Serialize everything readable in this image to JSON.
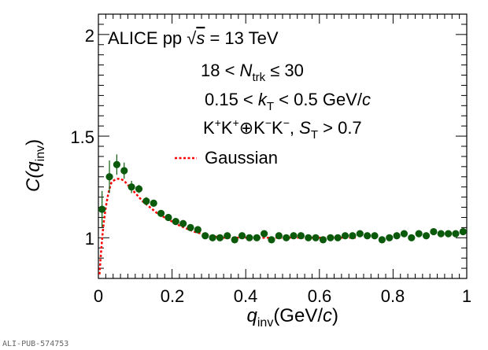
{
  "chart_data": {
    "type": "scatter",
    "xlim": [
      0,
      1
    ],
    "ylim": [
      0.8,
      2.1
    ],
    "x_ticks": [
      "0",
      "0.2",
      "0.4",
      "0.6",
      "0.8",
      "1"
    ],
    "y_ticks": [
      "1",
      "1.5",
      "2"
    ],
    "xlabel": "q_inv (GeV/c)",
    "ylabel": "C(q_inv)",
    "annotations": [
      "ALICE  pp  √s = 13 TeV",
      "18 < N_trk ≤ 30",
      "0.15 < k_T < 0.5 GeV/c",
      "K⁺K⁺⊕K⁻K⁻, S_T > 0.7"
    ],
    "legend_label": "Gaussian",
    "legend_position": "center-left",
    "colors": {
      "data": "#0b5a0b",
      "fit": "#ff0000"
    },
    "series": [
      {
        "kind": "points",
        "x": [
          0.01,
          0.03,
          0.05,
          0.07,
          0.09,
          0.11,
          0.13,
          0.15,
          0.17,
          0.19,
          0.21,
          0.23,
          0.25,
          0.27,
          0.29,
          0.31,
          0.33,
          0.35,
          0.37,
          0.39,
          0.41,
          0.43,
          0.45,
          0.47,
          0.49,
          0.51,
          0.53,
          0.55,
          0.57,
          0.59,
          0.61,
          0.63,
          0.65,
          0.67,
          0.69,
          0.71,
          0.73,
          0.75,
          0.77,
          0.79,
          0.81,
          0.83,
          0.85,
          0.87,
          0.89,
          0.91,
          0.93,
          0.95,
          0.97,
          0.99
        ],
        "y": [
          1.14,
          1.3,
          1.36,
          1.33,
          1.25,
          1.24,
          1.18,
          1.17,
          1.12,
          1.1,
          1.08,
          1.07,
          1.05,
          1.04,
          1.01,
          1.0,
          1.0,
          1.01,
          0.99,
          1.01,
          1.0,
          1.0,
          1.02,
          0.99,
          1.01,
          1.0,
          1.01,
          1.01,
          1.0,
          1.0,
          0.99,
          1.0,
          1.0,
          1.01,
          1.01,
          1.02,
          1.01,
          1.01,
          0.99,
          1.0,
          1.01,
          1.02,
          1.0,
          1.02,
          1.01,
          1.03,
          1.02,
          1.02,
          1.02,
          1.03
        ],
        "err": [
          0.09,
          0.08,
          0.05,
          0.04,
          0.03,
          0.02,
          0.02,
          0.015,
          0.01,
          0.01,
          0.01,
          0.01,
          0.01,
          0.01,
          0.01,
          0.01,
          0.01,
          0.01,
          0.01,
          0.01,
          0.01,
          0.01,
          0.01,
          0.01,
          0.01,
          0.01,
          0.01,
          0.01,
          0.01,
          0.01,
          0.01,
          0.01,
          0.01,
          0.01,
          0.01,
          0.01,
          0.01,
          0.01,
          0.01,
          0.01,
          0.01,
          0.01,
          0.01,
          0.01,
          0.01,
          0.01,
          0.01,
          0.01,
          0.01,
          0.01
        ]
      },
      {
        "kind": "fit",
        "name": "Gaussian",
        "x": [
          0.003,
          0.006,
          0.009,
          0.012,
          0.015,
          0.02,
          0.025,
          0.03,
          0.035,
          0.04,
          0.05,
          0.06,
          0.07,
          0.08,
          0.09,
          0.1,
          0.12,
          0.14,
          0.16,
          0.18,
          0.2,
          0.22,
          0.24,
          0.26,
          0.28,
          0.3,
          0.32,
          0.34,
          0.36,
          0.38,
          0.4,
          0.45,
          0.5,
          0.55,
          0.6,
          0.65,
          0.7
        ],
        "y": [
          0.82,
          0.9,
          0.97,
          1.03,
          1.08,
          1.15,
          1.2,
          1.24,
          1.27,
          1.28,
          1.29,
          1.29,
          1.28,
          1.26,
          1.24,
          1.22,
          1.18,
          1.15,
          1.12,
          1.1,
          1.08,
          1.06,
          1.045,
          1.03,
          1.02,
          1.01,
          1.005,
          1.0,
          1.0,
          1.0,
          1.0,
          1.0,
          1.0,
          1.0,
          1.0,
          1.0,
          1.0
        ]
      }
    ]
  },
  "axis_text": {
    "x_main": "q",
    "x_sub": "inv",
    "x_unit_open": "(GeV/",
    "x_unit_c": "c",
    "x_unit_close": ")",
    "y_main": "C(q",
    "y_sub": "inv",
    "y_close": ")"
  },
  "ann_text": {
    "line1_alice": "ALICE  pp  ",
    "line1_sqrt": "√",
    "line1_s": "s",
    "line1_rest": " = 13 TeV",
    "line2_pre": "18 < ",
    "line2_N": "N",
    "line2_sub": "trk",
    "line2_post": " ≤ 30",
    "line3_pre": "0.15 < ",
    "line3_k": "k",
    "line3_sub": "T",
    "line3_post": " < 0.5 GeV/",
    "line3_c": "c",
    "line4_K1": "K",
    "line4_sup1": "+",
    "line4_K2": "K",
    "line4_sup2": "+",
    "line4_op": "⊕K",
    "line4_sup3": "−",
    "line4_K4": "K",
    "line4_sup4": "−",
    "line4_comma": ", ",
    "line4_S": "S",
    "line4_sub": "T",
    "line4_post": " > 0.7"
  },
  "footer": {
    "pub_id": "ALI-PUB-574753"
  }
}
